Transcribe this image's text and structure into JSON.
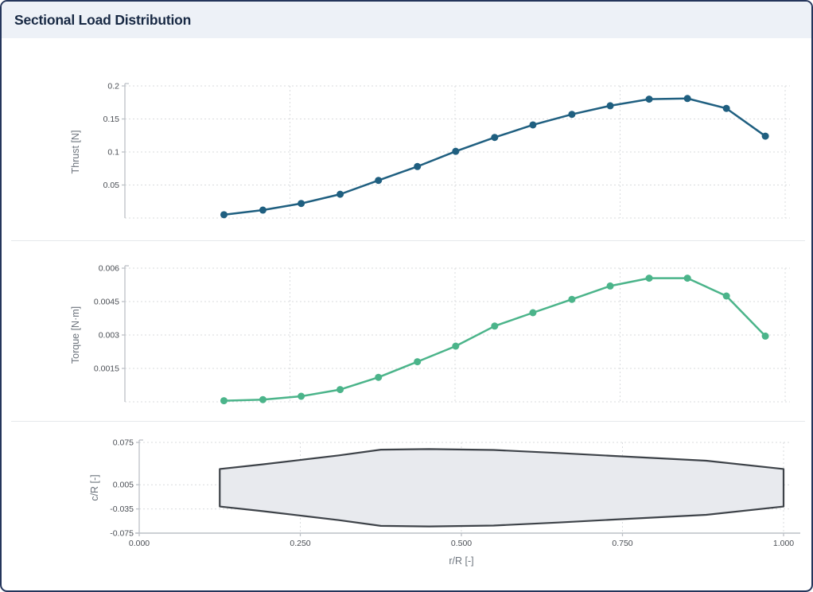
{
  "header": {
    "title": "Sectional Load Distribution"
  },
  "colors": {
    "thrust_line": "#1f5f80",
    "torque_line": "#4bb48a",
    "planform_fill": "#e8eaee",
    "planform_stroke": "#3d4248",
    "gridline": "#d9dbde",
    "axis": "#bcc0c6",
    "tick_text": "#4a4e54",
    "axis_title_text": "#6d747d",
    "header_bg": "#edf1f7",
    "title_text": "#182944",
    "divider": "#e6e8eb"
  },
  "chart_data": [
    {
      "type": "line",
      "name": "thrust-distribution",
      "ylabel": "Thrust [N]",
      "color": "#1f5f80",
      "xlim": [
        0,
        1
      ],
      "ylim": [
        0,
        0.2
      ],
      "grid": true,
      "legend": "none",
      "x": [
        0.15,
        0.209,
        0.267,
        0.326,
        0.384,
        0.443,
        0.501,
        0.56,
        0.618,
        0.677,
        0.735,
        0.794,
        0.852,
        0.911,
        0.97
      ],
      "values": [
        0.005,
        0.012,
        0.022,
        0.036,
        0.057,
        0.078,
        0.101,
        0.122,
        0.141,
        0.157,
        0.17,
        0.18,
        0.181,
        0.166,
        0.124
      ],
      "yticks": [
        {
          "value": 0.2,
          "label": "0.2"
        },
        {
          "value": 0.15,
          "label": "0.15"
        },
        {
          "value": 0.1,
          "label": "0.1"
        },
        {
          "value": 0.05,
          "label": "0.05"
        }
      ],
      "hgrid_extra": [
        0
      ],
      "vgrid": [
        0.25,
        0.5,
        0.75,
        1.0
      ]
    },
    {
      "type": "line",
      "name": "torque-distribution",
      "ylabel": "Torque [N·m]",
      "color": "#4bb48a",
      "xlim": [
        0,
        1
      ],
      "ylim": [
        0,
        0.006
      ],
      "grid": true,
      "legend": "none",
      "x": [
        0.15,
        0.209,
        0.267,
        0.326,
        0.384,
        0.443,
        0.501,
        0.56,
        0.618,
        0.677,
        0.735,
        0.794,
        0.852,
        0.911,
        0.97
      ],
      "values": [
        5e-05,
        0.0001,
        0.00025,
        0.00055,
        0.0011,
        0.0018,
        0.0025,
        0.0034,
        0.004,
        0.0046,
        0.0052,
        0.00555,
        0.00555,
        0.00475,
        0.00295
      ],
      "yticks": [
        {
          "value": 0.006,
          "label": "0.006"
        },
        {
          "value": 0.0045,
          "label": "0.0045"
        },
        {
          "value": 0.003,
          "label": "0.003"
        },
        {
          "value": 0.0015,
          "label": "0.0015"
        }
      ],
      "hgrid_extra": [
        0
      ],
      "vgrid": [
        0.25,
        0.5,
        0.75,
        1.0
      ]
    },
    {
      "type": "area",
      "name": "blade-planform",
      "ylabel": "c/R [-]",
      "xlabel": "r/R [-]",
      "fill": "#e8eaee",
      "stroke": "#3d4248",
      "xlim": [
        0,
        1
      ],
      "ylim": [
        -0.075,
        0.075
      ],
      "grid": true,
      "legend": "none",
      "x": [
        0.125,
        0.19,
        0.25,
        0.31,
        0.375,
        0.45,
        0.55,
        0.65,
        0.73,
        0.88,
        1.0
      ],
      "y_top": [
        0.031,
        0.0385,
        0.046,
        0.0535,
        0.063,
        0.064,
        0.0625,
        0.0575,
        0.053,
        0.0447,
        0.031
      ],
      "y_bottom": [
        -0.031,
        -0.0385,
        -0.046,
        -0.0535,
        -0.063,
        -0.064,
        -0.0625,
        -0.0575,
        -0.053,
        -0.0447,
        -0.031
      ],
      "yticks": [
        {
          "value": 0.075,
          "label": "0.075"
        },
        {
          "value": 0.005,
          "label": "0.005"
        },
        {
          "value": -0.035,
          "label": "-0.035"
        },
        {
          "value": -0.075,
          "label": "-0.075"
        }
      ],
      "xticks": [
        {
          "value": 0.0,
          "label": "0.000"
        },
        {
          "value": 0.25,
          "label": "0.250"
        },
        {
          "value": 0.5,
          "label": "0.500"
        },
        {
          "value": 0.75,
          "label": "0.750"
        },
        {
          "value": 1.0,
          "label": "1.000"
        }
      ],
      "vgrid": [
        0.25,
        0.5,
        0.75,
        1.0
      ]
    }
  ]
}
